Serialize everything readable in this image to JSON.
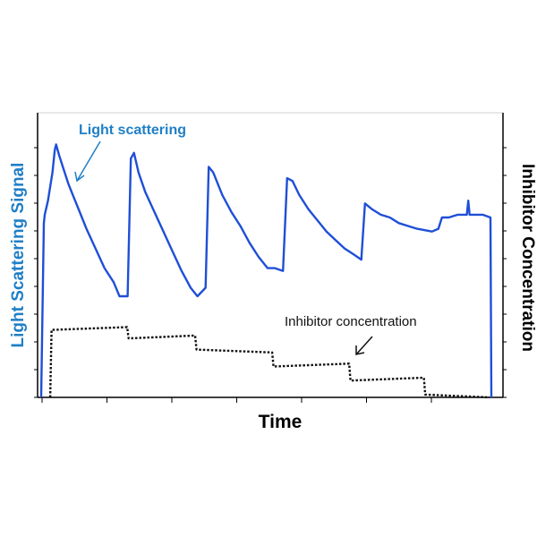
{
  "chart_data": {
    "type": "line",
    "title": "",
    "xlabel": "Time",
    "ylabel_left": "Light Scattering Signal",
    "ylabel_right": "Inhibitor Concentration",
    "xlim": [
      0,
      100
    ],
    "ylim": [
      0,
      100
    ],
    "grid": false,
    "annotations": [
      {
        "text": "Light scattering",
        "series": "light_scattering"
      },
      {
        "text": "Inhibitor concentration",
        "series": "inhibitor_concentration"
      }
    ],
    "colors": {
      "light_scattering": "#1f4fd6",
      "light_scattering_label": "#1f7fc6",
      "inhibitor": "#111111"
    },
    "series": [
      {
        "id": "light_scattering",
        "x": [
          0,
          0.6,
          0.8,
          1.5,
          2.5,
          3.0,
          3.3,
          4,
          5,
          6,
          7,
          8,
          10,
          12,
          14,
          16,
          17.3,
          19.1,
          19.8,
          20.5,
          21.5,
          23,
          25,
          27,
          29,
          31,
          33,
          34.5,
          36.3,
          37.0,
          38,
          40,
          42,
          44,
          46,
          48,
          50,
          51.6,
          53.4,
          54.3,
          55.5,
          57,
          59,
          61,
          63,
          65,
          67,
          68.9,
          70.7,
          71.5,
          73,
          75,
          77,
          79,
          81,
          83,
          86.3,
          87.7,
          88.5,
          90,
          92,
          94,
          94.3,
          94.6,
          95,
          96,
          97.5,
          99.2,
          99.4
        ],
        "y": [
          0,
          62,
          65,
          70,
          80,
          88,
          90,
          86,
          81,
          76,
          72,
          68,
          60,
          53,
          46,
          41,
          36,
          36,
          85,
          87,
          80,
          73,
          66,
          59,
          52,
          45,
          39,
          36,
          39,
          82,
          80,
          72,
          66,
          61,
          55,
          50,
          46,
          46,
          45,
          78,
          77,
          72,
          67,
          63,
          59,
          56,
          53,
          51,
          49,
          69,
          67,
          65,
          64,
          62,
          61,
          60,
          59,
          60,
          64,
          64,
          65,
          65,
          70,
          65,
          65,
          65,
          65,
          64,
          0
        ]
      },
      {
        "id": "inhibitor_concentration",
        "x": [
          2,
          2.3,
          19,
          19.3,
          34,
          34.3,
          51,
          51.3,
          68,
          68.3,
          84.5,
          84.8,
          99
        ],
        "y": [
          0,
          24,
          25,
          21,
          22,
          17,
          16,
          11,
          12,
          6,
          7,
          1,
          0
        ]
      }
    ]
  }
}
